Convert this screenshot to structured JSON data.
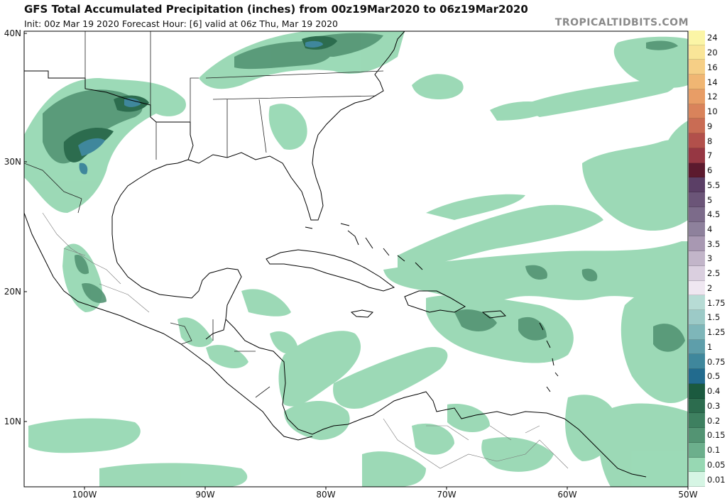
{
  "header": {
    "title": "GFS Total Accumulated Precipitation (inches) from 00z19Mar2020 to 06z19Mar2020",
    "subtitle": "Init: 00z Mar 19 2020   Forecast Hour: [6]   valid at 06z Thu, Mar 19 2020",
    "site": "TROPICALTIDBITS.COM"
  },
  "axes": {
    "lat_labels": [
      "40N",
      "30N",
      "20N",
      "10N"
    ],
    "lon_labels": [
      "100W",
      "90W",
      "80W",
      "70W",
      "60W",
      "50W"
    ]
  },
  "colors": {
    "land_line": "#000000",
    "border_line": "#555555",
    "accent": "#1a7c5e"
  },
  "legend": [
    {
      "label": "24",
      "color": "#fbf5a6"
    },
    {
      "label": "20",
      "color": "#f9e598"
    },
    {
      "label": "16",
      "color": "#f6cf86"
    },
    {
      "label": "14",
      "color": "#f0b673"
    },
    {
      "label": "12",
      "color": "#e89d66"
    },
    {
      "label": "10",
      "color": "#d9835b"
    },
    {
      "label": "9",
      "color": "#c96c54"
    },
    {
      "label": "8",
      "color": "#b2504b"
    },
    {
      "label": "7",
      "color": "#963743"
    },
    {
      "label": "6",
      "color": "#5c1a2e"
    },
    {
      "label": "5.5",
      "color": "#5b3f66"
    },
    {
      "label": "5",
      "color": "#6b5578"
    },
    {
      "label": "4.5",
      "color": "#7c6b8a"
    },
    {
      "label": "4",
      "color": "#8e819c"
    },
    {
      "label": "3.5",
      "color": "#a898b2"
    },
    {
      "label": "3",
      "color": "#c2b5c9"
    },
    {
      "label": "2.5",
      "color": "#dacfdf"
    },
    {
      "label": "2",
      "color": "#efe7f1"
    },
    {
      "label": "1.75",
      "color": "#b7dcd5"
    },
    {
      "label": "1.5",
      "color": "#9ccac7"
    },
    {
      "label": "1.25",
      "color": "#7eb6b9"
    },
    {
      "label": "1",
      "color": "#5e9eaa"
    },
    {
      "label": "0.75",
      "color": "#3f879c"
    },
    {
      "label": "0.5",
      "color": "#226b8e"
    },
    {
      "label": "0.4",
      "color": "#1b5a3f"
    },
    {
      "label": "0.3",
      "color": "#2c6c4e"
    },
    {
      "label": "0.2",
      "color": "#3e8060"
    },
    {
      "label": "0.15",
      "color": "#539473"
    },
    {
      "label": "0.1",
      "color": "#6caf8c"
    },
    {
      "label": "0.05",
      "color": "#97d8b3"
    },
    {
      "label": "0.01",
      "color": "#d6f5e4"
    }
  ]
}
